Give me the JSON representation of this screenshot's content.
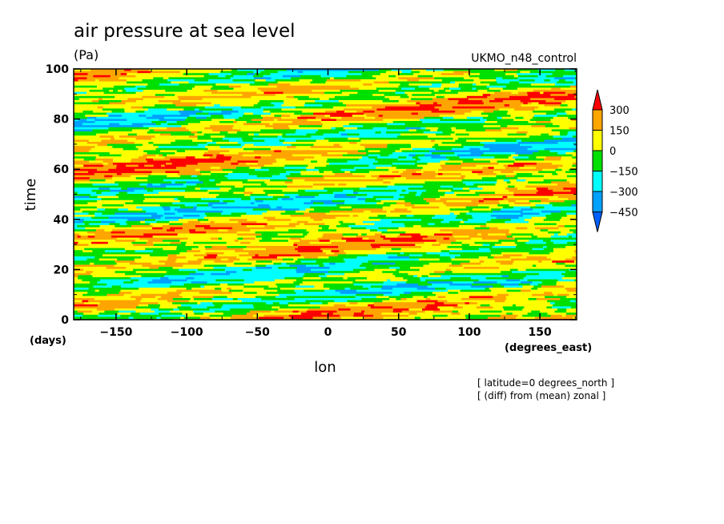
{
  "chart_data": {
    "type": "heatmap",
    "title": "air pressure at sea level",
    "units": "(Pa)",
    "run_label": "UKMO_n48_control",
    "xlabel": "lon",
    "ylabel": "time",
    "x_units": "(degrees_east)",
    "y_units": "(days)",
    "xlim": [
      -180,
      176
    ],
    "ylim": [
      0,
      100
    ],
    "x_ticks": [
      -150,
      -100,
      -50,
      0,
      50,
      100,
      150
    ],
    "y_ticks": [
      0,
      20,
      40,
      60,
      80,
      100
    ],
    "colorbar": {
      "levels": [
        300,
        150,
        0,
        -150,
        -300,
        -450
      ],
      "level_labels": [
        "300",
        "150",
        "0",
        "−150",
        "−300",
        "−450"
      ],
      "bins": [
        {
          "range": "> 300",
          "color": "#ff0000"
        },
        {
          "range": "150 to 300",
          "color": "#ffa500"
        },
        {
          "range": "0 to 150",
          "color": "#ffff00"
        },
        {
          "range": "-150 to 0",
          "color": "#00e000"
        },
        {
          "range": "-300 to -150",
          "color": "#00ffff"
        },
        {
          "range": "-450 to -300",
          "color": "#00a0ff"
        },
        {
          "range": "< -450",
          "color": "#0060ff"
        }
      ]
    },
    "notes": [
      "[ latitude=0 degrees_north ]",
      "[ (diff) from (mean) zonal ]"
    ],
    "grid": false
  }
}
